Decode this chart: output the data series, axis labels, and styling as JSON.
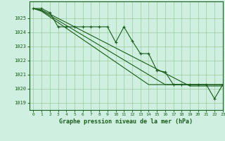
{
  "title": "Graphe pression niveau de la mer (hPa)",
  "bg_color": "#cff0e0",
  "line_color": "#1a5c1a",
  "grid_color": "#99cc99",
  "xlim": [
    -0.5,
    23
  ],
  "ylim": [
    1018.5,
    1026.2
  ],
  "yticks": [
    1019,
    1020,
    1021,
    1022,
    1023,
    1024,
    1025
  ],
  "xticks": [
    0,
    1,
    2,
    3,
    4,
    5,
    6,
    7,
    8,
    9,
    10,
    11,
    12,
    13,
    14,
    15,
    16,
    17,
    18,
    19,
    20,
    21,
    22,
    23
  ],
  "smooth_series": [
    [
      1025.7,
      1025.6,
      1025.3,
      1025.0,
      1024.7,
      1024.4,
      1024.1,
      1023.8,
      1023.5,
      1023.2,
      1022.9,
      1022.6,
      1022.3,
      1022.0,
      1021.7,
      1021.4,
      1021.1,
      1020.8,
      1020.5,
      1020.2,
      1020.2,
      1020.2,
      1020.2,
      1020.2
    ],
    [
      1025.7,
      1025.55,
      1025.2,
      1024.85,
      1024.5,
      1024.15,
      1023.8,
      1023.45,
      1023.1,
      1022.75,
      1022.4,
      1022.05,
      1021.7,
      1021.35,
      1021.0,
      1020.65,
      1020.3,
      1020.3,
      1020.3,
      1020.3,
      1020.3,
      1020.3,
      1020.3,
      1020.3
    ],
    [
      1025.7,
      1025.5,
      1025.1,
      1024.7,
      1024.3,
      1023.9,
      1023.5,
      1023.1,
      1022.7,
      1022.3,
      1021.9,
      1021.5,
      1021.1,
      1020.7,
      1020.3,
      1020.3,
      1020.3,
      1020.3,
      1020.3,
      1020.3,
      1020.3,
      1020.3,
      1020.3,
      1020.3
    ]
  ],
  "marker_series": [
    [
      1025.7,
      1025.7,
      1025.4,
      1024.4,
      1024.4,
      1024.4,
      1024.4,
      1024.4,
      1024.4,
      1024.4,
      1023.3,
      1024.4,
      1023.4,
      1022.5,
      1022.5,
      1021.3,
      1021.2,
      1020.3,
      1020.3,
      1020.3,
      1020.3,
      1020.3,
      1019.3,
      1020.3
    ]
  ]
}
